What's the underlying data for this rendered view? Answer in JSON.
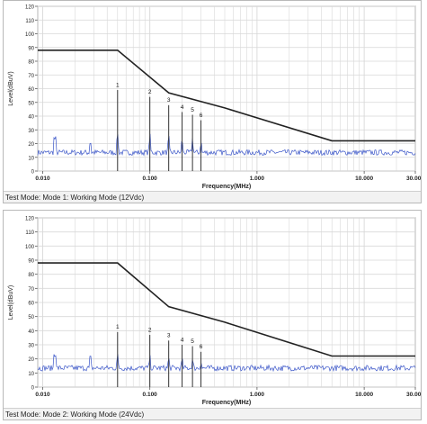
{
  "chart_data": [
    {
      "type": "line",
      "caption": "Test Mode: Mode 1: Working Mode (12Vdc)",
      "xlabel": "Frequency(MHz)",
      "ylabel": "Level(dBuV)",
      "x_scale": "log",
      "xlim": [
        0.009,
        30
      ],
      "ylim": [
        0,
        120
      ],
      "x_ticks": [
        "0.010",
        "0.100",
        "1.000",
        "10.000",
        "30.000"
      ],
      "y_ticks": [
        "0",
        "10",
        "20",
        "30",
        "40",
        "50",
        "60",
        "70",
        "80",
        "90",
        "100",
        "110",
        "120"
      ],
      "grid": true,
      "limit_line": {
        "x": [
          0.009,
          0.05,
          0.15,
          0.5,
          5,
          30
        ],
        "y": [
          88,
          88,
          57,
          46,
          22,
          22
        ]
      },
      "markers": [
        {
          "label": "1",
          "x": 0.05,
          "y": 62
        },
        {
          "label": "2",
          "x": 0.1,
          "y": 57
        },
        {
          "label": "3",
          "x": 0.15,
          "y": 51
        },
        {
          "label": "4",
          "x": 0.2,
          "y": 46
        },
        {
          "label": "5",
          "x": 0.25,
          "y": 44
        },
        {
          "label": "6",
          "x": 0.3,
          "y": 40
        }
      ]
    },
    {
      "type": "line",
      "caption": "Test Mode: Mode 2: Working Mode (24Vdc)",
      "xlabel": "Frequency(MHz)",
      "ylabel": "Level(dBuV)",
      "x_scale": "log",
      "xlim": [
        0.009,
        30
      ],
      "ylim": [
        0,
        120
      ],
      "x_ticks": [
        "0.010",
        "0.100",
        "1.000",
        "10.000",
        "30.000"
      ],
      "y_ticks": [
        "0",
        "10",
        "20",
        "30",
        "40",
        "50",
        "60",
        "70",
        "80",
        "90",
        "100",
        "110",
        "120"
      ],
      "grid": true,
      "limit_line": {
        "x": [
          0.009,
          0.05,
          0.15,
          0.5,
          5,
          30
        ],
        "y": [
          88,
          88,
          57,
          46,
          22,
          22
        ]
      },
      "markers": [
        {
          "label": "1",
          "x": 0.05,
          "y": 42
        },
        {
          "label": "2",
          "x": 0.1,
          "y": 40
        },
        {
          "label": "3",
          "x": 0.15,
          "y": 36
        },
        {
          "label": "4",
          "x": 0.2,
          "y": 33
        },
        {
          "label": "5",
          "x": 0.25,
          "y": 32
        },
        {
          "label": "6",
          "x": 0.3,
          "y": 28
        }
      ]
    }
  ],
  "colors": {
    "limit": "#222222",
    "trace": "#3a55c8",
    "marker": "#333333",
    "grid": "#d8d8d8"
  }
}
